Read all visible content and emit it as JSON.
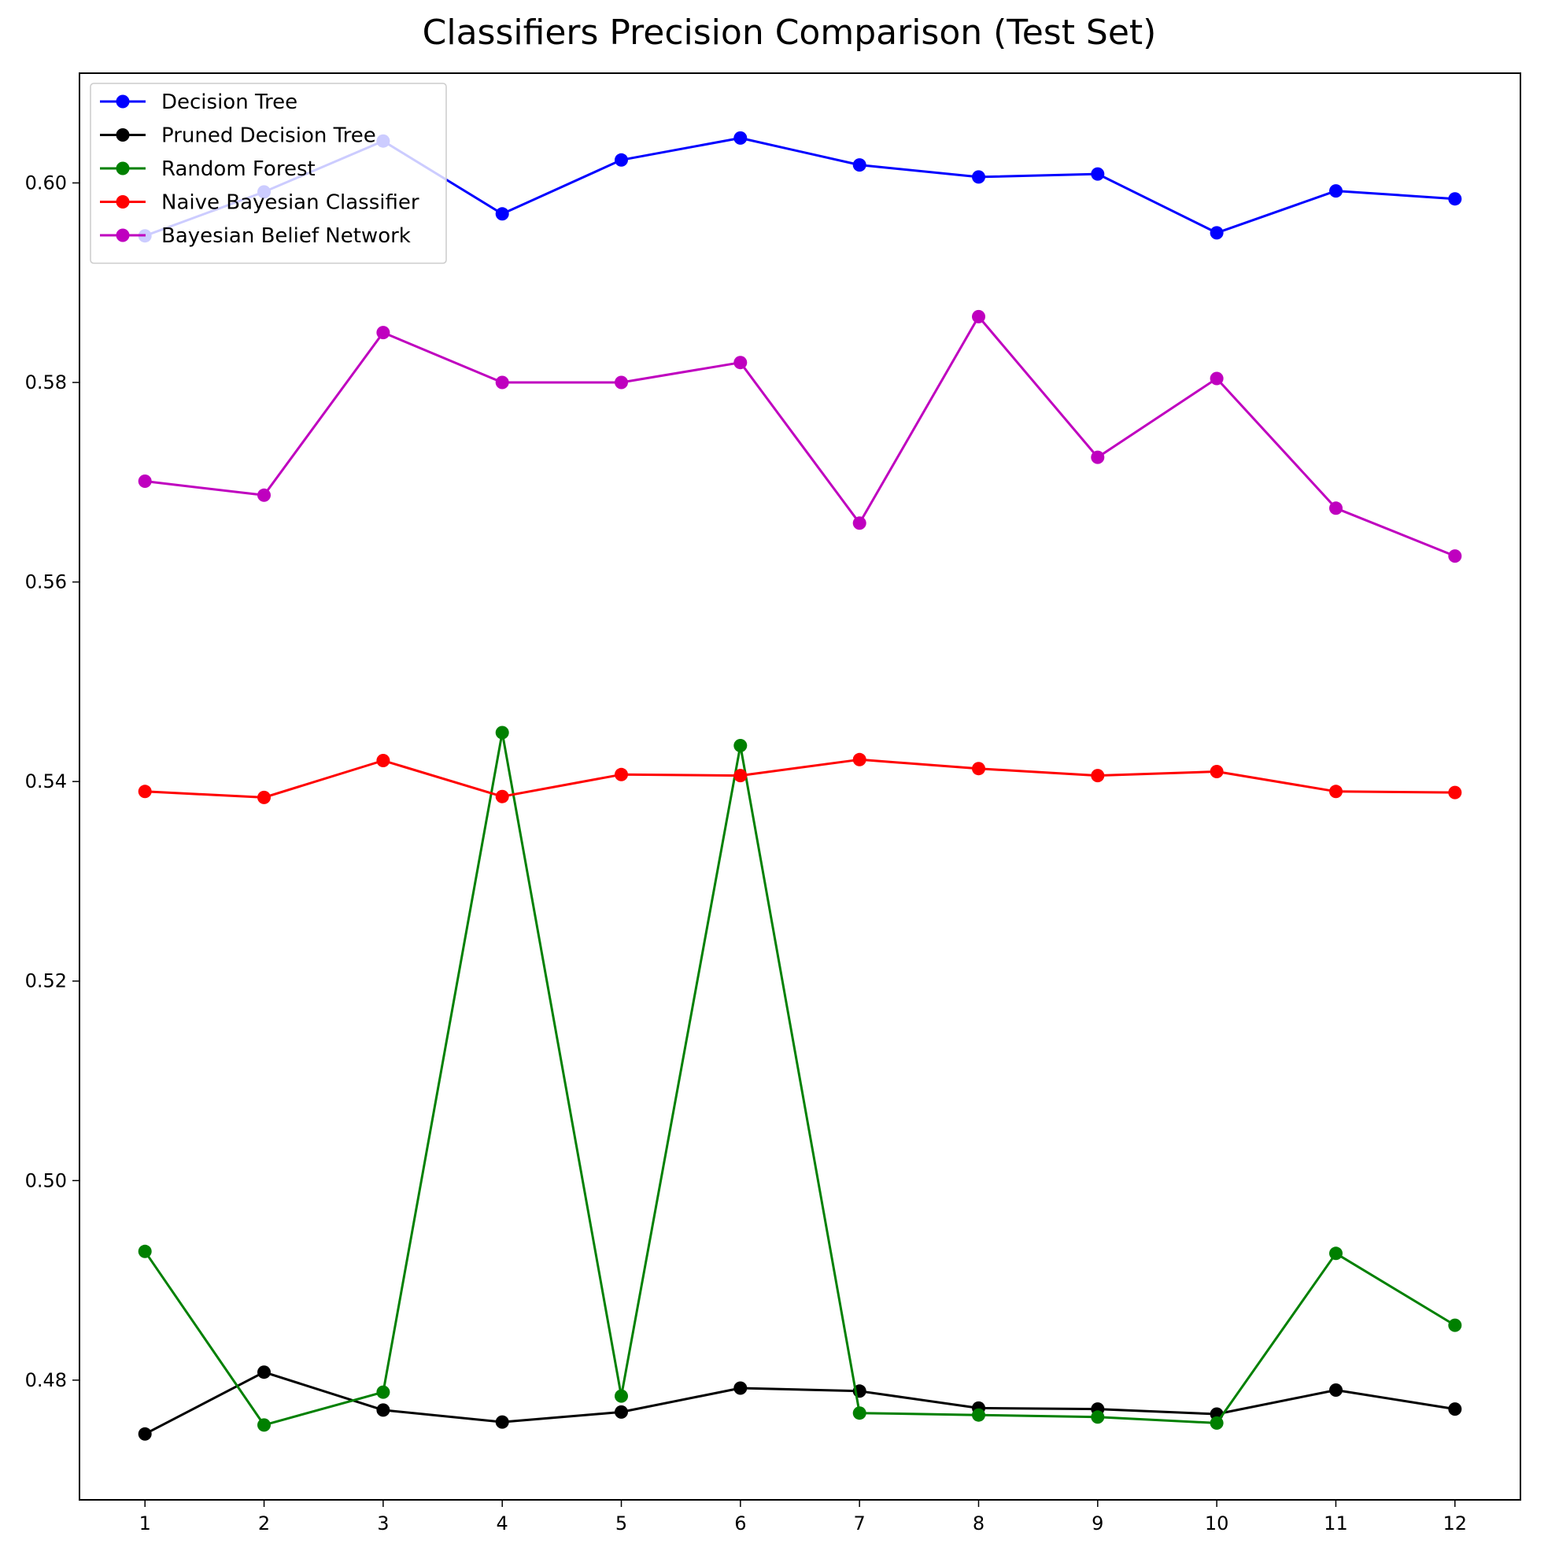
{
  "chart_data": {
    "type": "line",
    "title": "Classifiers Precision Comparison (Test Set)",
    "xlabel": "",
    "ylabel": "",
    "x": [
      1,
      2,
      3,
      4,
      5,
      6,
      7,
      8,
      9,
      10,
      11,
      12
    ],
    "xlim": [
      0.45,
      12.55
    ],
    "ylim": [
      0.468,
      0.611
    ],
    "yticks": [
      0.48,
      0.5,
      0.52,
      0.54,
      0.56,
      0.58,
      0.6
    ],
    "ytick_labels": [
      "0.48",
      "0.50",
      "0.52",
      "0.54",
      "0.56",
      "0.58",
      "0.60"
    ],
    "xtick_labels": [
      "1",
      "2",
      "3",
      "4",
      "5",
      "6",
      "7",
      "8",
      "9",
      "10",
      "11",
      "12"
    ],
    "grid": false,
    "legend_position": "top-left",
    "series": [
      {
        "name": "Decision Tree",
        "color": "#0000ff",
        "values": [
          0.5947,
          0.5991,
          0.6042,
          0.5969,
          0.6023,
          0.6045,
          0.6018,
          0.6006,
          0.6009,
          0.595,
          0.5992,
          0.5984
        ]
      },
      {
        "name": "Pruned Decision Tree",
        "color": "#000000",
        "values": [
          0.4746,
          0.4808,
          0.477,
          0.4758,
          0.4768,
          0.4792,
          0.4789,
          0.4772,
          0.4771,
          0.4766,
          0.479,
          0.4771
        ]
      },
      {
        "name": "Random Forest",
        "color": "#008000",
        "values": [
          0.4929,
          0.4755,
          0.4788,
          0.5449,
          0.4784,
          0.5436,
          0.4767,
          0.4765,
          0.4763,
          0.4757,
          0.4927,
          0.4855
        ]
      },
      {
        "name": "Naive Bayesian Classifier",
        "color": "#ff0000",
        "values": [
          0.539,
          0.5384,
          0.5421,
          0.5385,
          0.5407,
          0.5406,
          0.5422,
          0.5413,
          0.5406,
          0.541,
          0.539,
          0.5389
        ]
      },
      {
        "name": "Bayesian Belief Network",
        "color": "#bf00bf",
        "values": [
          0.5701,
          0.5687,
          0.585,
          0.58,
          0.58,
          0.582,
          0.5659,
          0.5866,
          0.5725,
          0.5804,
          0.5674,
          0.5626
        ]
      }
    ]
  }
}
